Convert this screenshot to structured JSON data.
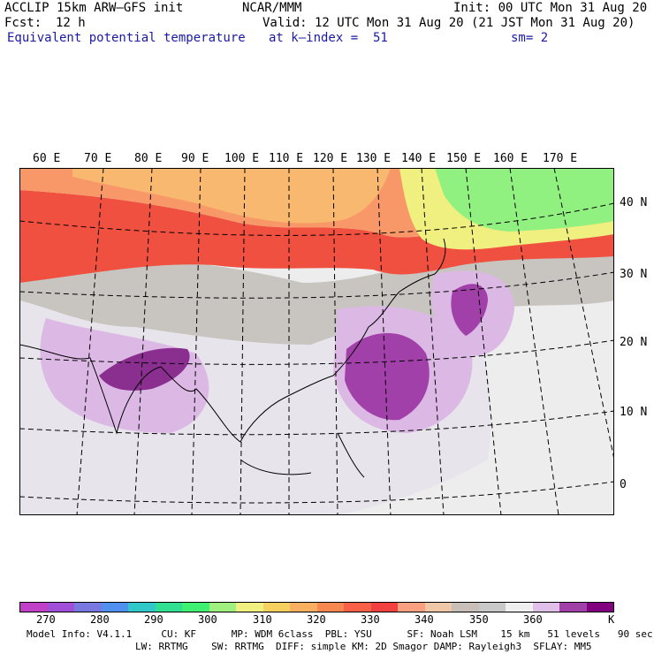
{
  "header": {
    "model": "ACCLIP 15km ARW–GFS init",
    "center": "NCAR/MMM",
    "init": "Init: 00 UTC Mon 31 Aug 20",
    "fcst_label": "Fcst:",
    "fcst_value": "12 h",
    "valid": "Valid: 12 UTC Mon 31 Aug 20 (21 JST Mon 31 Aug 20)",
    "field": "Equivalent potential temperature",
    "level": "at k–index =  51",
    "smoothing": "sm= 2"
  },
  "map": {
    "lon_labels": [
      "60 E",
      "70 E",
      "80 E",
      "90 E",
      "100 E",
      "110 E",
      "120 E",
      "130 E",
      "140 E",
      "150 E",
      "160 E",
      "170 E"
    ],
    "lat_labels": [
      "40 N",
      "30 N",
      "20 N",
      "10 N",
      "0"
    ]
  },
  "colorbar": {
    "unit": "K",
    "colors": [
      "#c040c8",
      "#a050d8",
      "#7878e0",
      "#5090f0",
      "#30c8c8",
      "#30e090",
      "#40f070",
      "#a0f080",
      "#f0f080",
      "#f8d060",
      "#f8b060",
      "#f88850",
      "#f86048",
      "#f04040",
      "#f8a080",
      "#f0c8a8",
      "#c8c0b8",
      "#c8c8c8",
      "#f0f0f0",
      "#e0c0e8",
      "#a040a8",
      "#800080"
    ],
    "tick_labels": [
      "270",
      "280",
      "290",
      "300",
      "310",
      "320",
      "330",
      "340",
      "350",
      "360"
    ]
  },
  "footer": {
    "line1": "Model Info: V4.1.1     CU: KF      MP: WDM 6class  PBL: YSU      SF: Noah LSM    15 km   51 levels   90 sec",
    "line2": "LW: RRTMG    SW: RRTMG  DIFF: simple KM: 2D Smagor DAMP: Rayleigh3  SFLAY: MM5"
  }
}
